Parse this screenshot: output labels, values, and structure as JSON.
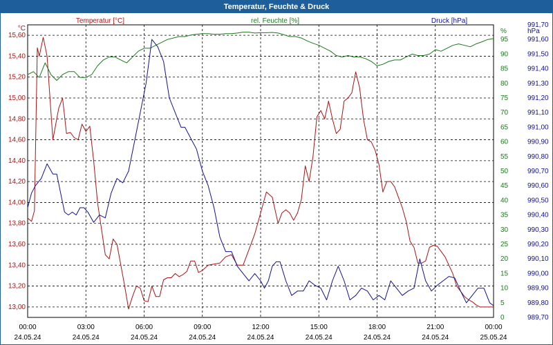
{
  "window": {
    "title": "Temperatur, Feuchte & Druck"
  },
  "colors": {
    "temperature": "#b01010",
    "humidity": "#1a7a1a",
    "pressure": "#10109a",
    "axis_text": "#000000"
  },
  "chart_data": {
    "type": "line",
    "grid": true,
    "legend": "top",
    "x_ticks": [
      {
        "time": "00:00",
        "date": "24.05.24"
      },
      {
        "time": "03:00",
        "date": "24.05.24"
      },
      {
        "time": "06:00",
        "date": "24.05.24"
      },
      {
        "time": "09:00",
        "date": "24.05.24"
      },
      {
        "time": "12:00",
        "date": "24.05.24"
      },
      {
        "time": "15:00",
        "date": "24.05.24"
      },
      {
        "time": "18:00",
        "date": "24.05.24"
      },
      {
        "time": "21:00",
        "date": "24.05.24"
      },
      {
        "time": "00:00",
        "date": "25.05.24"
      }
    ],
    "x_range_hours": [
      0,
      24
    ],
    "axes": {
      "temperature": {
        "unit_label": "°C",
        "range": [
          12.9,
          15.7
        ],
        "ticks": [
          "13,00",
          "13,20",
          "13,40",
          "13,60",
          "13,80",
          "14,00",
          "14,20",
          "14,40",
          "14,60",
          "14,80",
          "15,00",
          "15,20",
          "15,40",
          "15,60"
        ],
        "tick_values": [
          13.0,
          13.2,
          13.4,
          13.6,
          13.8,
          14.0,
          14.2,
          14.4,
          14.6,
          14.8,
          15.0,
          15.2,
          15.4,
          15.6
        ]
      },
      "humidity": {
        "unit_label": "%",
        "range": [
          0,
          100
        ],
        "ticks": [
          "0",
          "5",
          "10",
          "15",
          "20",
          "25",
          "30",
          "35",
          "40",
          "45",
          "50",
          "55",
          "60",
          "65",
          "70",
          "75",
          "80",
          "85",
          "90",
          "95",
          "100"
        ],
        "tick_values": [
          0,
          5,
          10,
          15,
          20,
          25,
          30,
          35,
          40,
          45,
          50,
          55,
          60,
          65,
          70,
          75,
          80,
          85,
          90,
          95,
          100
        ]
      },
      "pressure": {
        "unit_label": "hPa",
        "range": [
          989.7,
          991.7
        ],
        "ticks": [
          "989,70",
          "989,80",
          "989,90",
          "990,00",
          "990,10",
          "990,20",
          "990,30",
          "990,40",
          "990,50",
          "990,60",
          "990,70",
          "990,80",
          "990,90",
          "991,00",
          "991,10",
          "991,20",
          "991,30",
          "991,40",
          "991,50",
          "991,60",
          "991,70"
        ],
        "tick_values": [
          989.7,
          989.8,
          989.9,
          990.0,
          990.1,
          990.2,
          990.3,
          990.4,
          990.5,
          990.6,
          990.7,
          990.8,
          990.9,
          991.0,
          991.1,
          991.2,
          991.3,
          991.4,
          991.5,
          991.6,
          991.7
        ]
      }
    },
    "series": [
      {
        "name": "Temperatur [°C]",
        "axis": "temperature",
        "x": [
          0,
          0.2,
          0.35,
          0.5,
          0.6,
          0.8,
          1.0,
          1.3,
          1.6,
          1.8,
          2.0,
          2.2,
          2.4,
          2.6,
          2.8,
          3.0,
          3.2,
          3.4,
          3.6,
          3.8,
          4.0,
          4.2,
          4.4,
          4.6,
          4.8,
          5.0,
          5.2,
          5.4,
          5.6,
          5.8,
          6.0,
          6.2,
          6.4,
          6.6,
          6.8,
          7.0,
          7.2,
          7.4,
          7.6,
          7.8,
          8.0,
          8.2,
          8.4,
          8.6,
          8.8,
          9.0,
          9.3,
          9.6,
          9.9,
          10.2,
          10.5,
          10.8,
          11.1,
          11.4,
          11.7,
          12.0,
          12.3,
          12.6,
          12.9,
          13.1,
          13.3,
          13.5,
          13.7,
          13.9,
          14.1,
          14.3,
          14.5,
          14.7,
          14.9,
          15.1,
          15.3,
          15.5,
          15.7,
          15.9,
          16.1,
          16.3,
          16.5,
          16.7,
          16.9,
          17.1,
          17.3,
          17.5,
          17.7,
          17.9,
          18.1,
          18.3,
          18.5,
          18.7,
          18.9,
          19.1,
          19.3,
          19.5,
          19.7,
          19.9,
          20.1,
          20.3,
          20.5,
          20.7,
          20.9,
          21.1,
          21.3,
          21.5,
          21.7,
          21.9,
          22.1,
          22.3,
          22.5,
          22.7,
          22.9,
          23.1,
          23.3,
          23.5,
          23.7,
          23.9,
          24.0
        ],
        "y": [
          13.85,
          13.82,
          13.92,
          15.48,
          15.4,
          15.58,
          15.4,
          14.6,
          14.9,
          15.0,
          14.66,
          14.67,
          14.62,
          14.6,
          14.75,
          14.68,
          14.73,
          14.4,
          14.0,
          13.75,
          13.5,
          13.46,
          13.65,
          13.6,
          13.4,
          13.2,
          12.98,
          13.1,
          13.2,
          13.18,
          13.06,
          13.05,
          13.2,
          13.1,
          13.1,
          13.26,
          13.28,
          13.28,
          13.32,
          13.29,
          13.31,
          13.34,
          13.44,
          13.44,
          13.33,
          13.35,
          13.4,
          13.41,
          13.42,
          13.48,
          13.5,
          13.4,
          13.4,
          13.55,
          13.7,
          13.9,
          14.1,
          14.05,
          13.8,
          13.9,
          13.93,
          13.9,
          13.83,
          13.9,
          14.03,
          14.35,
          14.2,
          14.44,
          14.82,
          14.88,
          14.8,
          14.97,
          14.8,
          14.66,
          14.7,
          14.97,
          15.0,
          15.05,
          15.25,
          15.1,
          14.8,
          14.6,
          14.58,
          14.5,
          14.36,
          14.1,
          14.2,
          14.2,
          14.15,
          14.05,
          13.95,
          13.82,
          13.63,
          13.57,
          13.42,
          13.42,
          13.44,
          13.57,
          13.59,
          13.58,
          13.53,
          13.48,
          13.4,
          13.32,
          13.2,
          13.15,
          13.1,
          13.07,
          13.05,
          13.02,
          13.0,
          13.0,
          13.0,
          13.0,
          13.0
        ],
        "color": "#b01010"
      },
      {
        "name": "rel. Feuchte [%]",
        "axis": "humidity",
        "x": [
          0,
          0.3,
          0.6,
          0.9,
          1.2,
          1.5,
          1.8,
          2.1,
          2.4,
          2.7,
          3.0,
          3.3,
          3.6,
          3.9,
          4.2,
          4.5,
          4.8,
          5.1,
          5.4,
          5.7,
          6.0,
          6.3,
          6.6,
          6.9,
          7.2,
          7.5,
          7.8,
          8.1,
          8.4,
          8.7,
          9.0,
          9.3,
          9.6,
          9.9,
          10.2,
          10.5,
          10.8,
          11.1,
          11.4,
          11.7,
          12.0,
          12.3,
          12.6,
          12.9,
          13.2,
          13.5,
          13.8,
          14.1,
          14.4,
          14.7,
          15.0,
          15.3,
          15.6,
          15.9,
          16.2,
          16.5,
          16.8,
          17.1,
          17.4,
          17.7,
          18.0,
          18.3,
          18.6,
          18.9,
          19.2,
          19.5,
          19.8,
          20.1,
          20.4,
          20.7,
          21.0,
          21.3,
          21.6,
          21.9,
          22.2,
          22.5,
          22.8,
          23.1,
          23.4,
          23.7,
          24.0
        ],
        "y": [
          83,
          84,
          82,
          87,
          83,
          81,
          83,
          84,
          84,
          82,
          82,
          83,
          86,
          88,
          89,
          89,
          88,
          87,
          89,
          91,
          92,
          92,
          93,
          94,
          95,
          95.5,
          96,
          96,
          96.5,
          96.8,
          97,
          97,
          96.8,
          96.8,
          97,
          97,
          97.2,
          97.5,
          97.5,
          97.2,
          97.3,
          97.3,
          97.4,
          97.2,
          96.6,
          96,
          96,
          95.5,
          94.5,
          93.7,
          93,
          92,
          91,
          89.5,
          89,
          89.5,
          89,
          89,
          88.5,
          87.5,
          86,
          86.5,
          87.5,
          88,
          88,
          89,
          90,
          89.5,
          89.5,
          90,
          91.5,
          91,
          92,
          93,
          93.5,
          93,
          92.5,
          93.5,
          94.2,
          95,
          95.3
        ],
        "color": "#1a7a1a"
      },
      {
        "name": "Druck [hPa]",
        "axis": "pressure",
        "x": [
          0,
          0.2,
          0.4,
          0.7,
          1.0,
          1.3,
          1.5,
          1.7,
          1.9,
          2.1,
          2.3,
          2.5,
          2.7,
          2.9,
          3.1,
          3.4,
          3.7,
          4.0,
          4.3,
          4.6,
          4.9,
          5.2,
          5.5,
          5.8,
          6.1,
          6.4,
          6.7,
          7.0,
          7.3,
          7.6,
          7.9,
          8.1,
          8.3,
          8.5,
          8.7,
          9.0,
          9.3,
          9.6,
          9.9,
          10.2,
          10.5,
          10.8,
          11.1,
          11.4,
          11.7,
          12.0,
          12.2,
          12.4,
          12.6,
          12.8,
          13.0,
          13.3,
          13.6,
          13.9,
          14.2,
          14.5,
          14.8,
          15.1,
          15.4,
          15.7,
          16.0,
          16.3,
          16.6,
          16.9,
          17.2,
          17.5,
          17.8,
          18.1,
          18.4,
          18.7,
          19.0,
          19.3,
          19.6,
          19.9,
          20.2,
          20.5,
          20.8,
          21.1,
          21.4,
          21.7,
          22.0,
          22.3,
          22.6,
          22.9,
          23.2,
          23.5,
          23.8,
          24.0
        ],
        "y": [
          990.45,
          990.55,
          990.6,
          990.65,
          990.75,
          990.68,
          990.68,
          990.55,
          990.42,
          990.4,
          990.42,
          990.4,
          990.45,
          990.45,
          990.42,
          990.35,
          990.4,
          990.38,
          990.55,
          990.65,
          990.62,
          990.7,
          990.9,
          991.1,
          991.3,
          991.6,
          991.55,
          991.45,
          991.2,
          991.1,
          991.0,
          991.0,
          990.95,
          990.9,
          990.85,
          990.7,
          990.6,
          990.45,
          990.25,
          990.15,
          990.15,
          990.05,
          990.0,
          989.95,
          990.0,
          989.95,
          989.9,
          989.95,
          990.05,
          990.08,
          990.08,
          989.95,
          989.85,
          989.88,
          989.88,
          989.95,
          989.92,
          989.9,
          989.82,
          989.95,
          990.05,
          989.95,
          989.82,
          989.85,
          989.9,
          989.88,
          989.82,
          989.85,
          989.82,
          989.95,
          989.9,
          989.85,
          989.88,
          989.9,
          990.1,
          989.95,
          989.88,
          989.92,
          989.95,
          989.98,
          989.97,
          989.88,
          989.8,
          989.85,
          989.9,
          989.9,
          989.8,
          989.78
        ],
        "color": "#10109a"
      }
    ]
  }
}
